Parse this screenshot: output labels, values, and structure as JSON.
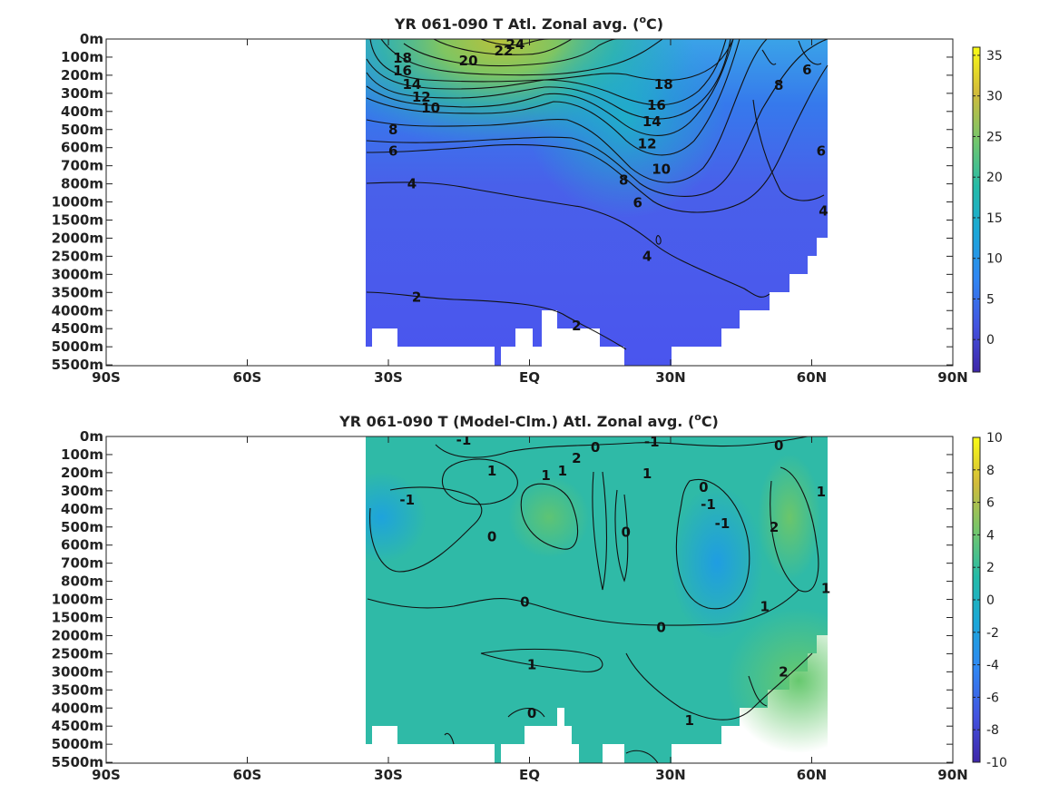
{
  "chart_data": [
    {
      "type": "heatmap",
      "title_main": "YR 061-090 T Atl. Zonal avg. (",
      "title_sup": "o",
      "title_end": "C)",
      "x_ticks": [
        "90S",
        "60S",
        "30S",
        "EQ",
        "30N",
        "60N",
        "90N"
      ],
      "x_tick_values": [
        -90,
        -60,
        -30,
        0,
        30,
        60,
        90
      ],
      "xlim": [
        -90,
        90
      ],
      "y_ticks": [
        "0m",
        "100m",
        "200m",
        "300m",
        "400m",
        "500m",
        "600m",
        "700m",
        "800m",
        "1000m",
        "1500m",
        "2000m",
        "2500m",
        "3000m",
        "3500m",
        "4000m",
        "4500m",
        "5000m",
        "5500m"
      ],
      "data_lat_range": [
        -34,
        64
      ],
      "colorbar": {
        "ticks": [
          "35",
          "30",
          "25",
          "20",
          "15",
          "10",
          "5",
          "0"
        ],
        "tick_values": [
          35,
          30,
          25,
          20,
          15,
          10,
          5,
          0
        ],
        "range": [
          -4,
          36
        ]
      },
      "contour_labels": [
        {
          "text": "24",
          "lat": -3,
          "depth_idx": 0.3
        },
        {
          "text": "22",
          "lat": -5.5,
          "depth_idx": 0.65
        },
        {
          "text": "20",
          "lat": -13,
          "depth_idx": 1.2
        },
        {
          "text": "18",
          "lat": -27,
          "depth_idx": 1.05
        },
        {
          "text": "16",
          "lat": -27,
          "depth_idx": 1.75
        },
        {
          "text": "14",
          "lat": -25,
          "depth_idx": 2.5
        },
        {
          "text": "12",
          "lat": -23,
          "depth_idx": 3.2
        },
        {
          "text": "10",
          "lat": -21,
          "depth_idx": 3.8
        },
        {
          "text": "8",
          "lat": -29,
          "depth_idx": 5.0
        },
        {
          "text": "6",
          "lat": -29,
          "depth_idx": 6.2
        },
        {
          "text": "4",
          "lat": -25,
          "depth_idx": 8.0
        },
        {
          "text": "2",
          "lat": -24,
          "depth_idx": 14.25
        },
        {
          "text": "2",
          "lat": 10,
          "depth_idx": 15.85
        },
        {
          "text": "4",
          "lat": 25,
          "depth_idx": 12.0
        },
        {
          "text": "6",
          "lat": 23,
          "depth_idx": 9.05
        },
        {
          "text": "8",
          "lat": 20,
          "depth_idx": 7.8
        },
        {
          "text": "10",
          "lat": 28,
          "depth_idx": 7.2
        },
        {
          "text": "12",
          "lat": 25,
          "depth_idx": 5.8
        },
        {
          "text": "14",
          "lat": 26,
          "depth_idx": 4.55
        },
        {
          "text": "16",
          "lat": 27,
          "depth_idx": 3.65
        },
        {
          "text": "18",
          "lat": 28.5,
          "depth_idx": 2.5
        },
        {
          "text": "6",
          "lat": 59,
          "depth_idx": 1.7
        },
        {
          "text": "8",
          "lat": 53,
          "depth_idx": 2.55
        },
        {
          "text": "6",
          "lat": 62,
          "depth_idx": 6.2
        },
        {
          "text": "4",
          "lat": 62.5,
          "depth_idx": 9.5
        }
      ]
    },
    {
      "type": "heatmap",
      "title_main": "YR 061-090 T (Model-Clm.) Atl. Zonal avg. (",
      "title_sup": "o",
      "title_end": "C)",
      "x_ticks": [
        "90S",
        "60S",
        "30S",
        "EQ",
        "30N",
        "60N",
        "90N"
      ],
      "x_tick_values": [
        -90,
        -60,
        -30,
        0,
        30,
        60,
        90
      ],
      "xlim": [
        -90,
        90
      ],
      "y_ticks": [
        "0m",
        "100m",
        "200m",
        "300m",
        "400m",
        "500m",
        "600m",
        "700m",
        "800m",
        "1000m",
        "1500m",
        "2000m",
        "2500m",
        "3000m",
        "3500m",
        "4000m",
        "4500m",
        "5000m",
        "5500m"
      ],
      "data_lat_range": [
        -34,
        64
      ],
      "colorbar": {
        "ticks": [
          "10",
          "8",
          "6",
          "4",
          "2",
          "0",
          "-2",
          "-4",
          "-6",
          "-8",
          "-10"
        ],
        "tick_values": [
          10,
          8,
          6,
          4,
          2,
          0,
          -2,
          -4,
          -6,
          -8,
          -10
        ],
        "range": [
          -10,
          10
        ]
      },
      "contour_labels": [
        {
          "text": "-1",
          "lat": -14,
          "depth_idx": 0.2
        },
        {
          "text": "-1",
          "lat": 26,
          "depth_idx": 0.3
        },
        {
          "text": "0",
          "lat": 14,
          "depth_idx": 0.6
        },
        {
          "text": "2",
          "lat": 10,
          "depth_idx": 1.2
        },
        {
          "text": "1",
          "lat": 7,
          "depth_idx": 1.9
        },
        {
          "text": "1",
          "lat": -8,
          "depth_idx": 1.9
        },
        {
          "text": "1",
          "lat": 3.5,
          "depth_idx": 2.15
        },
        {
          "text": "1",
          "lat": 25,
          "depth_idx": 2.05
        },
        {
          "text": "0",
          "lat": 53,
          "depth_idx": 0.5
        },
        {
          "text": "1",
          "lat": 62,
          "depth_idx": 3.05
        },
        {
          "text": "-1",
          "lat": -26,
          "depth_idx": 3.5
        },
        {
          "text": "0",
          "lat": -8,
          "depth_idx": 5.55
        },
        {
          "text": "0",
          "lat": 20.5,
          "depth_idx": 5.3
        },
        {
          "text": "0",
          "lat": 37,
          "depth_idx": 2.8
        },
        {
          "text": "-1",
          "lat": 38,
          "depth_idx": 3.75
        },
        {
          "text": "-1",
          "lat": 41,
          "depth_idx": 4.8
        },
        {
          "text": "2",
          "lat": 52,
          "depth_idx": 5.0
        },
        {
          "text": "1",
          "lat": 63,
          "depth_idx": 8.4
        },
        {
          "text": "0",
          "lat": -1,
          "depth_idx": 9.15
        },
        {
          "text": "0",
          "lat": 28,
          "depth_idx": 10.55
        },
        {
          "text": "1",
          "lat": 50,
          "depth_idx": 9.4
        },
        {
          "text": "1",
          "lat": 0.5,
          "depth_idx": 12.6
        },
        {
          "text": "2",
          "lat": 54,
          "depth_idx": 13.0
        },
        {
          "text": "0",
          "lat": 0.5,
          "depth_idx": 15.3
        },
        {
          "text": "1",
          "lat": 34,
          "depth_idx": 15.7
        }
      ]
    }
  ]
}
